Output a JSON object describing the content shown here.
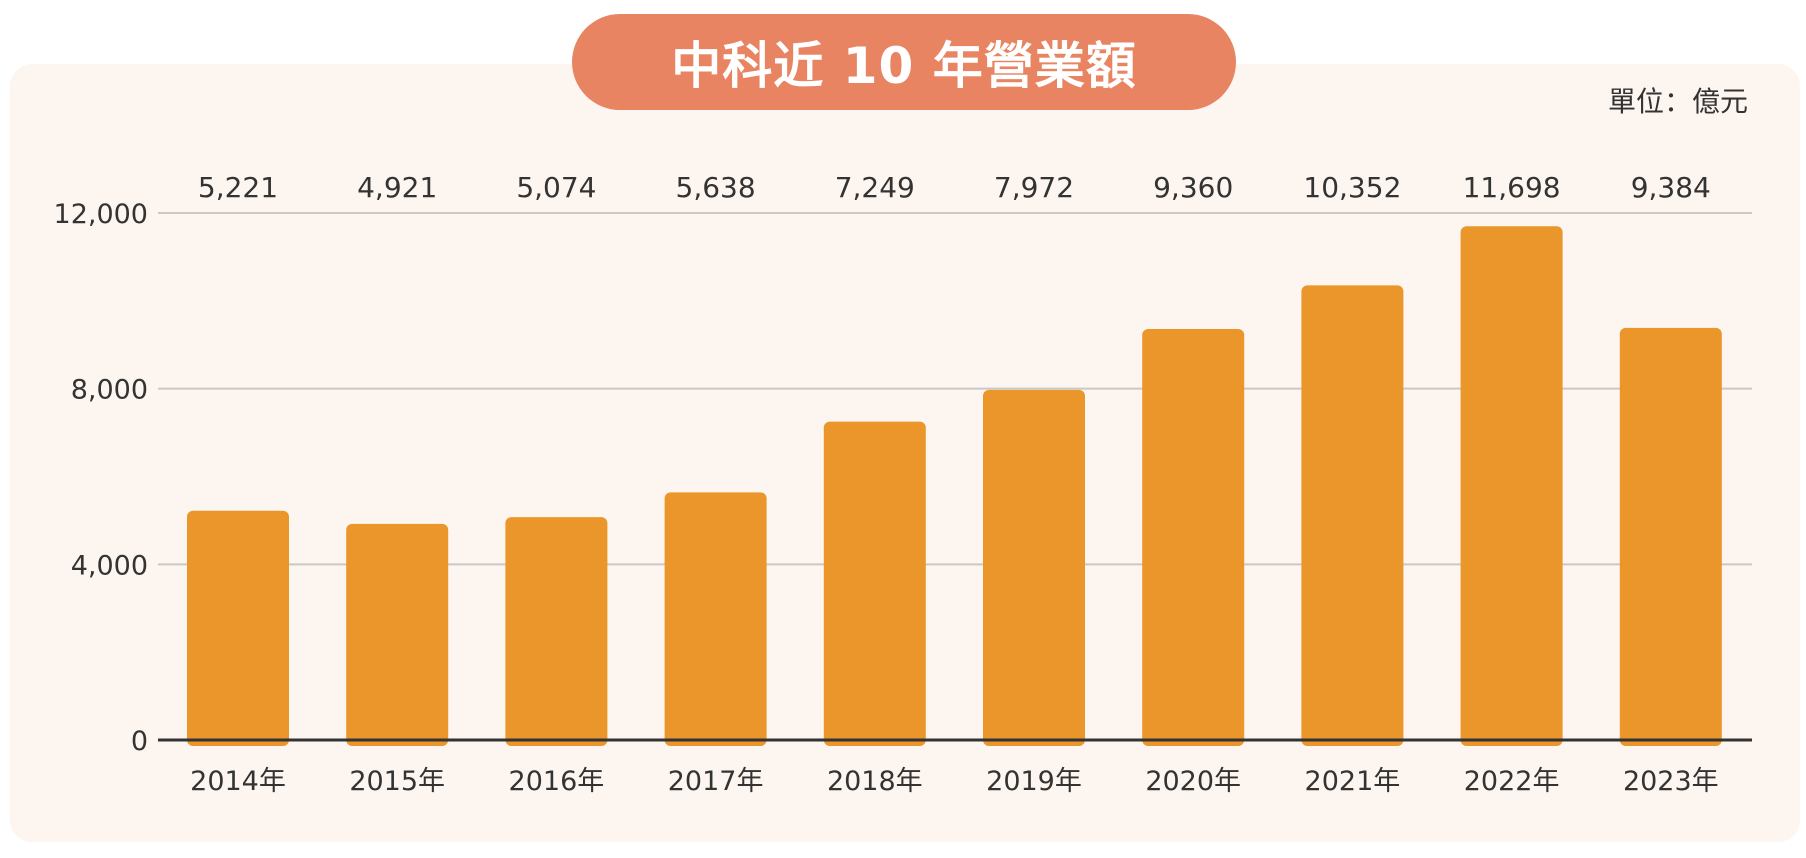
{
  "chart_data": {
    "type": "bar",
    "title": "中科近 10 年營業額",
    "unit": "單位：億元",
    "categories": [
      "2014年",
      "2015年",
      "2016年",
      "2017年",
      "2018年",
      "2019年",
      "2020年",
      "2021年",
      "2022年",
      "2023年"
    ],
    "values": [
      5221,
      4921,
      5074,
      5638,
      7249,
      7972,
      9360,
      10352,
      11698,
      9384
    ],
    "value_labels": [
      "5,221",
      "4,921",
      "5,074",
      "5,638",
      "7,249",
      "7,972",
      "9,360",
      "10,352",
      "11,698",
      "9,384"
    ],
    "yticks": [
      0,
      4000,
      8000,
      12000
    ],
    "ytick_labels": [
      "0",
      "4,000",
      "8,000",
      "12,000"
    ],
    "ylim": [
      0,
      12000
    ],
    "grid": true,
    "bar_color": "#eb962b",
    "title_color": "#e88462",
    "background_color": "#fdf6f0"
  }
}
